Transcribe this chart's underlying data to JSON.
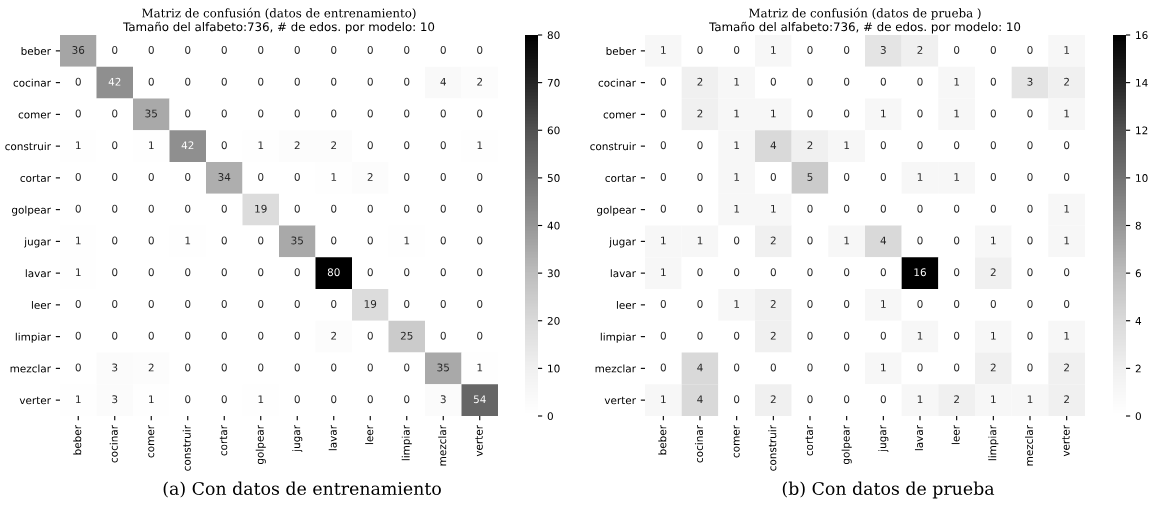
{
  "chart_data": [
    {
      "type": "heatmap",
      "title": "Matriz de confusión (datos de entrenamiento)",
      "subtitle": "Tamaño del alfabeto:736, # de edos. por modelo: 10",
      "categories": [
        "beber",
        "cocinar",
        "comer",
        "construir",
        "cortar",
        "golpear",
        "jugar",
        "lavar",
        "leer",
        "limpiar",
        "mezclar",
        "verter"
      ],
      "y_categories": [
        "beber",
        "cocinar",
        "comer",
        "construir",
        "cortar",
        "golpear",
        "jugar",
        "lavar",
        "leer",
        "limpiar",
        "mezclar",
        "verter"
      ],
      "cells": [
        [
          36,
          0,
          0,
          0,
          0,
          0,
          0,
          0,
          0,
          0,
          0,
          0
        ],
        [
          0,
          42,
          0,
          0,
          0,
          0,
          0,
          0,
          0,
          0,
          4,
          2
        ],
        [
          0,
          0,
          35,
          0,
          0,
          0,
          0,
          0,
          0,
          0,
          0,
          0
        ],
        [
          1,
          0,
          1,
          42,
          0,
          1,
          2,
          2,
          0,
          0,
          0,
          1
        ],
        [
          0,
          0,
          0,
          0,
          34,
          0,
          0,
          1,
          2,
          0,
          0,
          0
        ],
        [
          0,
          0,
          0,
          0,
          0,
          19,
          0,
          0,
          0,
          0,
          0,
          0
        ],
        [
          1,
          0,
          0,
          1,
          0,
          0,
          35,
          0,
          0,
          1,
          0,
          0
        ],
        [
          1,
          0,
          0,
          0,
          0,
          0,
          0,
          80,
          0,
          0,
          0,
          0
        ],
        [
          0,
          0,
          0,
          0,
          0,
          0,
          0,
          0,
          19,
          0,
          0,
          0
        ],
        [
          0,
          0,
          0,
          0,
          0,
          0,
          0,
          2,
          0,
          25,
          0,
          0
        ],
        [
          0,
          3,
          2,
          0,
          0,
          0,
          0,
          0,
          0,
          0,
          35,
          1
        ],
        [
          1,
          3,
          1,
          0,
          0,
          1,
          0,
          0,
          0,
          0,
          3,
          54
        ]
      ],
      "clim": [
        0,
        80
      ],
      "cticks": [
        0,
        10,
        20,
        30,
        40,
        50,
        60,
        70,
        80
      ],
      "data_labels": true,
      "grid": false,
      "annotations": [
        "(a) Con datos de entrenamiento"
      ]
    },
    {
      "type": "heatmap",
      "title": "Matriz de confusión (datos de prueba )",
      "subtitle": "Tamaño del alfabeto:736, # de edos. por modelo: 10",
      "categories": [
        "beber",
        "cocinar",
        "comer",
        "construir",
        "cortar",
        "golpear",
        "jugar",
        "lavar",
        "leer",
        "limpiar",
        "mezclar",
        "verter"
      ],
      "y_categories": [
        "beber",
        "cocinar",
        "comer",
        "construir",
        "cortar",
        "golpear",
        "jugar",
        "lavar",
        "leer",
        "limpiar",
        "mezclar",
        "verter"
      ],
      "cells": [
        [
          1,
          0,
          0,
          1,
          0,
          0,
          3,
          2,
          0,
          0,
          0,
          1
        ],
        [
          0,
          2,
          1,
          0,
          0,
          0,
          0,
          0,
          1,
          0,
          3,
          2
        ],
        [
          0,
          2,
          1,
          1,
          0,
          0,
          1,
          0,
          1,
          0,
          0,
          1
        ],
        [
          0,
          0,
          1,
          4,
          2,
          1,
          0,
          0,
          0,
          0,
          0,
          0
        ],
        [
          0,
          0,
          1,
          0,
          5,
          0,
          0,
          1,
          1,
          0,
          0,
          0
        ],
        [
          0,
          0,
          1,
          1,
          0,
          0,
          0,
          0,
          0,
          0,
          0,
          1
        ],
        [
          1,
          1,
          0,
          2,
          0,
          1,
          4,
          0,
          0,
          1,
          0,
          1
        ],
        [
          1,
          0,
          0,
          0,
          0,
          0,
          0,
          16,
          0,
          2,
          0,
          0
        ],
        [
          0,
          0,
          1,
          2,
          0,
          0,
          1,
          0,
          0,
          0,
          0,
          0
        ],
        [
          0,
          0,
          0,
          2,
          0,
          0,
          0,
          1,
          0,
          1,
          0,
          1
        ],
        [
          0,
          4,
          0,
          0,
          0,
          0,
          1,
          0,
          0,
          2,
          0,
          2
        ],
        [
          1,
          4,
          0,
          2,
          0,
          0,
          0,
          1,
          2,
          1,
          1,
          2
        ]
      ],
      "clim": [
        0,
        16
      ],
      "cticks": [
        0,
        2,
        4,
        6,
        8,
        10,
        12,
        14,
        16
      ],
      "data_labels": true,
      "grid": false,
      "annotations": [
        "(b) Con datos de prueba"
      ]
    }
  ]
}
